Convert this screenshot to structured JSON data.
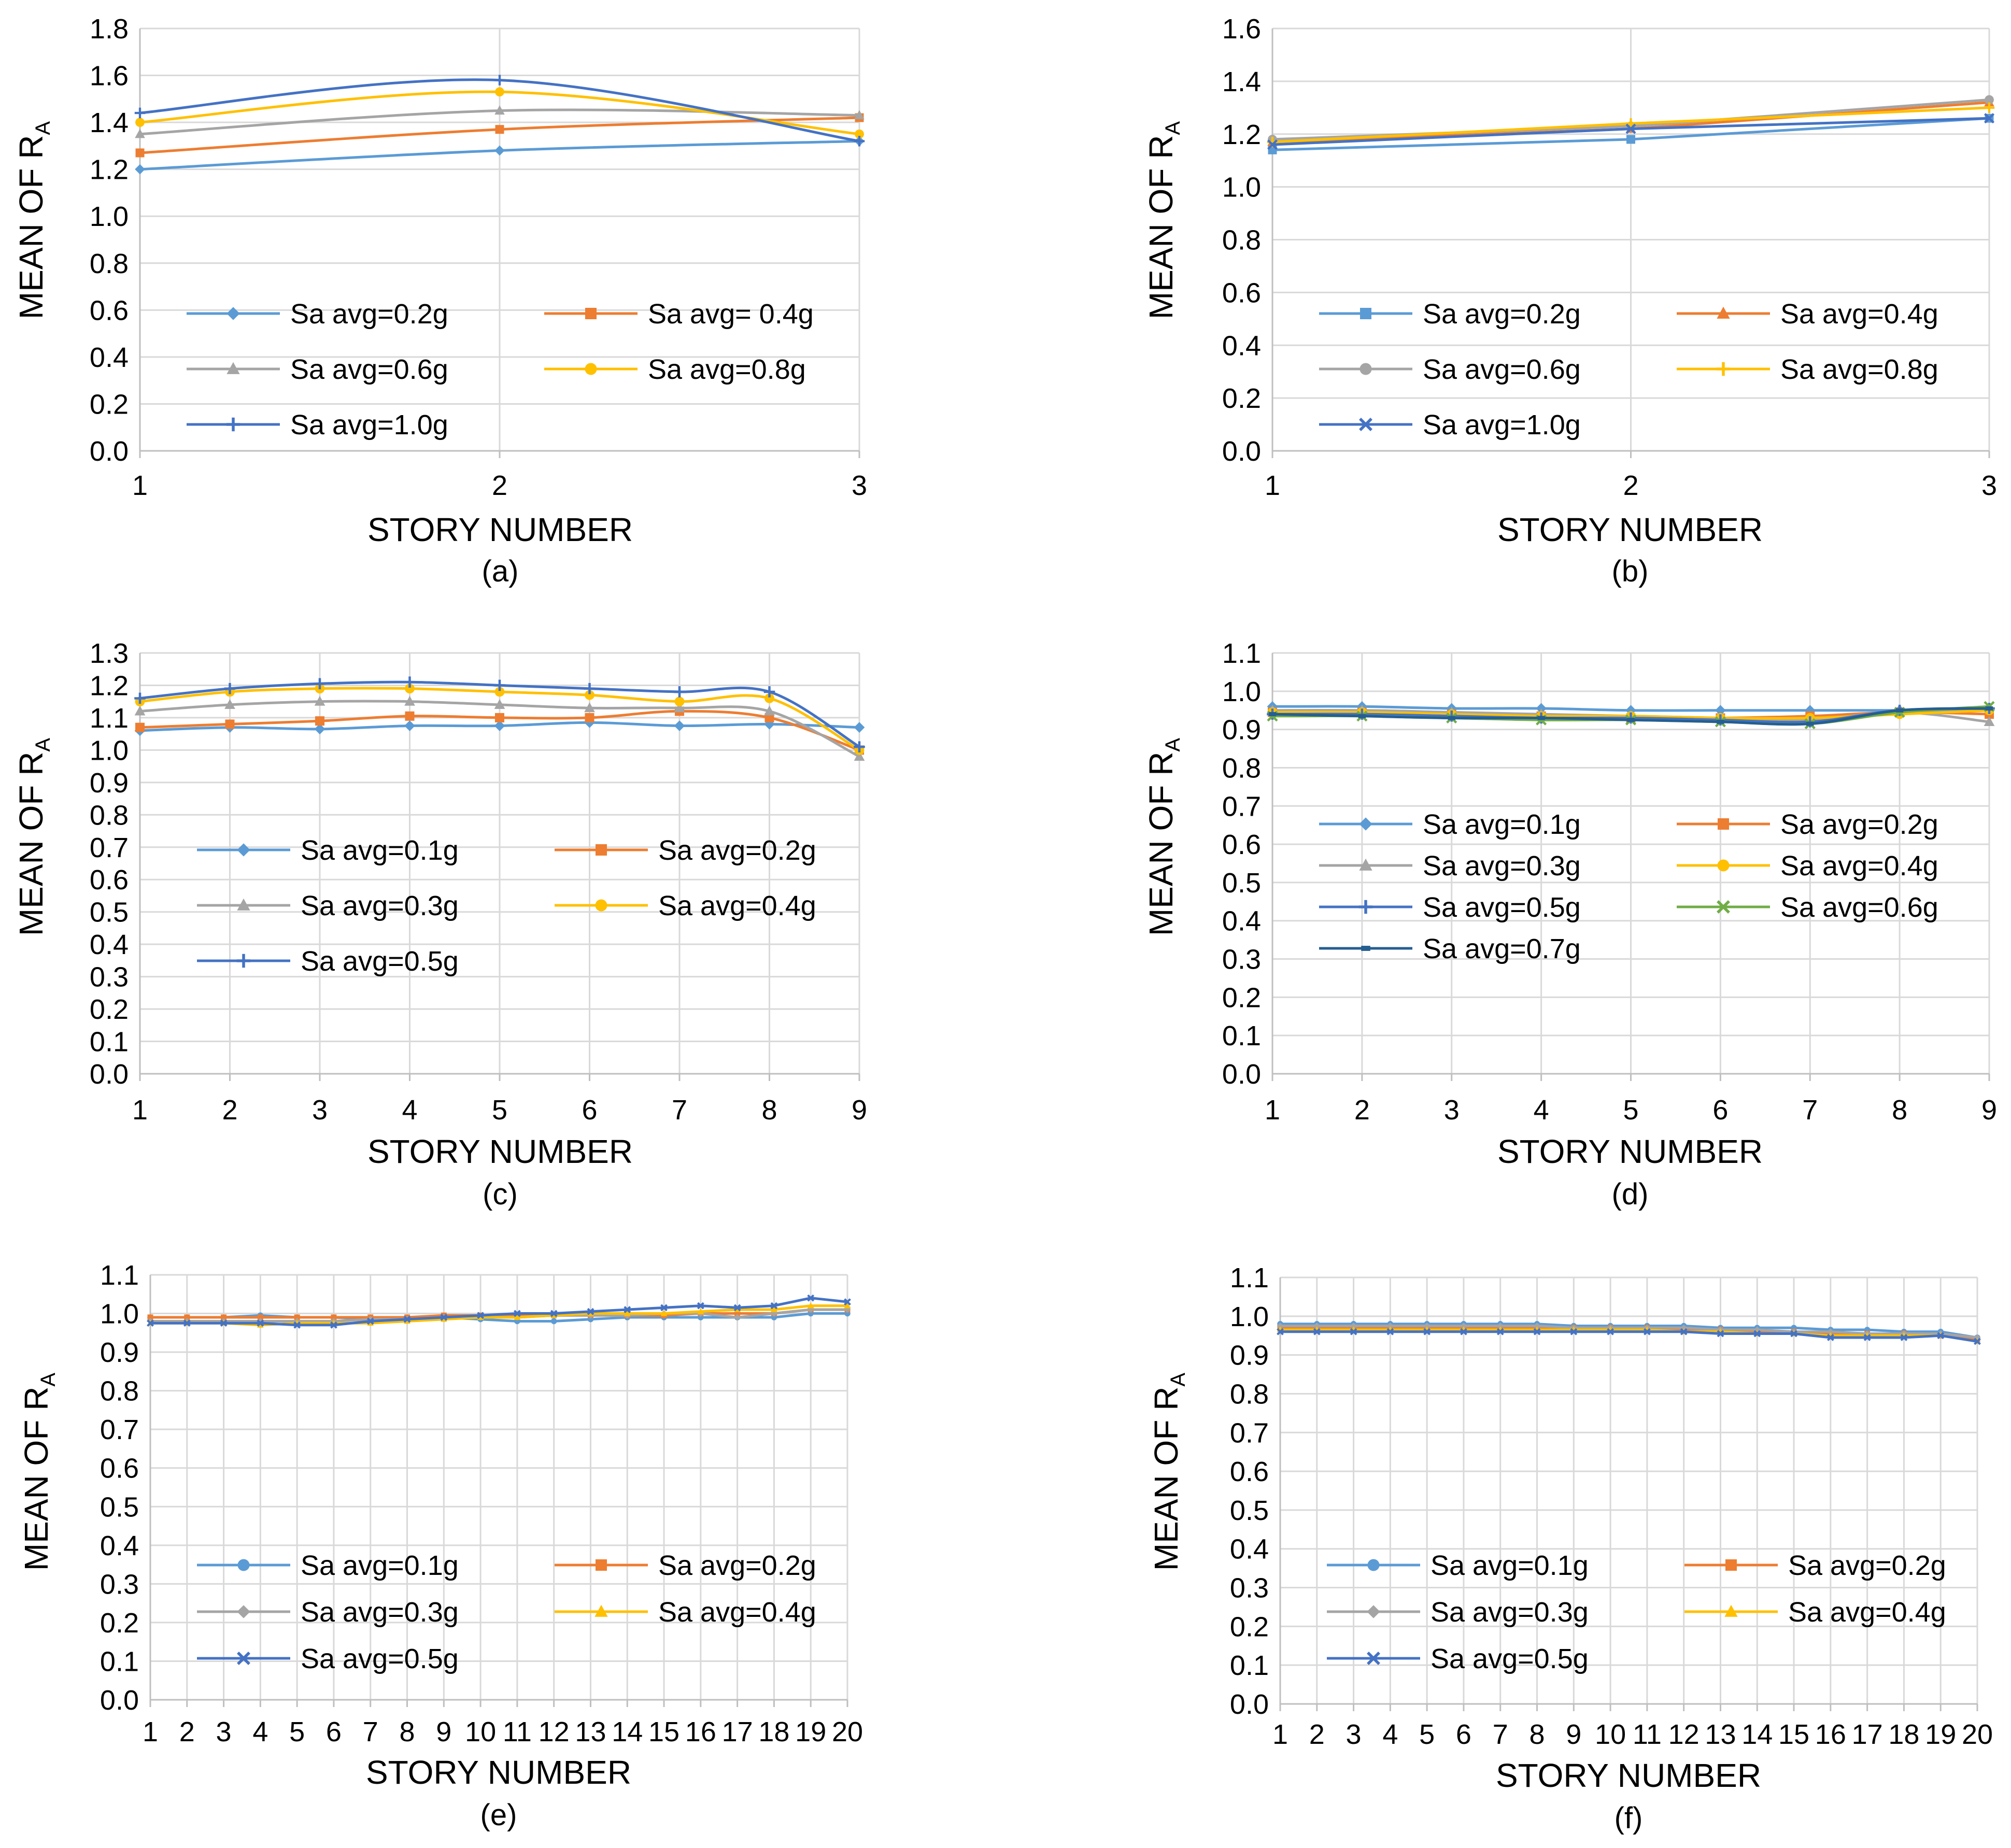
{
  "figure": {
    "panels": [
      {
        "id": "a",
        "caption": "(a)",
        "y_label_main": "MEAN OF  R",
        "y_label_sub": "A",
        "x_label": "STORY NUMBER"
      },
      {
        "id": "b",
        "caption": "(b)",
        "y_label_main": "MEAN OF  R",
        "y_label_sub": "A",
        "x_label": "STORY NUMBER"
      },
      {
        "id": "c",
        "caption": "(c)",
        "y_label_main": "MEAN OF R",
        "y_label_sub": "A",
        "x_label": "STORY NUMBER"
      },
      {
        "id": "d",
        "caption": "(d)",
        "y_label_main": "MEAN OF R",
        "y_label_sub": "A",
        "x_label": "STORY NUMBER"
      },
      {
        "id": "e",
        "caption": "(e)",
        "y_label_main": "MEAN OF  R",
        "y_label_sub": "A",
        "x_label": "STORY NUMBER"
      },
      {
        "id": "f",
        "caption": "(f)",
        "y_label_main": "MEAN OF R",
        "y_label_sub": "A",
        "x_label": "STORY NUMBER"
      }
    ]
  },
  "chart_data": [
    {
      "id": "a",
      "type": "line",
      "title": "",
      "xlabel": "STORY NUMBER",
      "ylabel": "MEAN OF  RA",
      "x": [
        1,
        2,
        3
      ],
      "ylim": [
        0,
        1.8
      ],
      "ytick_step": 0.2,
      "ytick_decimals": 1,
      "grid": true,
      "legend_position": "lower-left",
      "legend_columns": 2,
      "smooth": true,
      "series": [
        {
          "name": "Sa avg=0.2g",
          "color": "#5B9BD5",
          "marker": "diamond",
          "values": [
            1.2,
            1.28,
            1.32
          ]
        },
        {
          "name": "Sa avg= 0.4g",
          "color": "#ED7D31",
          "marker": "square",
          "values": [
            1.27,
            1.37,
            1.42
          ]
        },
        {
          "name": "Sa avg=0.6g",
          "color": "#A5A5A5",
          "marker": "triangle",
          "values": [
            1.35,
            1.45,
            1.43
          ]
        },
        {
          "name": "Sa avg=0.8g",
          "color": "#FFC000",
          "marker": "circle",
          "values": [
            1.4,
            1.53,
            1.35
          ]
        },
        {
          "name": "Sa avg=1.0g",
          "color": "#4472C4",
          "marker": "plus",
          "values": [
            1.44,
            1.58,
            1.32
          ]
        }
      ]
    },
    {
      "id": "b",
      "type": "line",
      "title": "",
      "xlabel": "STORY NUMBER",
      "ylabel": "MEAN OF  RA",
      "x": [
        1,
        2,
        3
      ],
      "ylim": [
        0,
        1.6
      ],
      "ytick_step": 0.2,
      "ytick_decimals": 1,
      "grid": true,
      "legend_position": "lower-left",
      "legend_columns": 2,
      "smooth": false,
      "series": [
        {
          "name": "Sa avg=0.2g",
          "color": "#5B9BD5",
          "marker": "square",
          "values": [
            1.14,
            1.18,
            1.26
          ]
        },
        {
          "name": "Sa avg=0.4g",
          "color": "#ED7D31",
          "marker": "triangle",
          "values": [
            1.17,
            1.22,
            1.32
          ]
        },
        {
          "name": "Sa avg=0.6g",
          "color": "#A5A5A5",
          "marker": "circle",
          "values": [
            1.18,
            1.23,
            1.33
          ]
        },
        {
          "name": "Sa avg=0.8g",
          "color": "#FFC000",
          "marker": "plus",
          "values": [
            1.17,
            1.24,
            1.3
          ]
        },
        {
          "name": "Sa avg=1.0g",
          "color": "#4472C4",
          "marker": "x",
          "values": [
            1.16,
            1.22,
            1.26
          ]
        }
      ]
    },
    {
      "id": "c",
      "type": "line",
      "title": "",
      "xlabel": "STORY NUMBER",
      "ylabel": "MEAN OF RA",
      "x": [
        1,
        2,
        3,
        4,
        5,
        6,
        7,
        8,
        9
      ],
      "ylim": [
        0,
        1.3
      ],
      "ytick_step": 0.1,
      "ytick_decimals": 1,
      "grid": true,
      "legend_position": "lower-left",
      "legend_columns": 2,
      "smooth": true,
      "series": [
        {
          "name": "Sa avg=0.1g",
          "color": "#5B9BD5",
          "marker": "diamond",
          "values": [
            1.06,
            1.07,
            1.065,
            1.075,
            1.075,
            1.085,
            1.075,
            1.08,
            1.07
          ]
        },
        {
          "name": "Sa avg=0.2g",
          "color": "#ED7D31",
          "marker": "square",
          "values": [
            1.07,
            1.08,
            1.09,
            1.105,
            1.1,
            1.1,
            1.12,
            1.1,
            1.0
          ]
        },
        {
          "name": "Sa avg=0.3g",
          "color": "#A5A5A5",
          "marker": "triangle",
          "values": [
            1.12,
            1.14,
            1.15,
            1.15,
            1.14,
            1.13,
            1.13,
            1.12,
            0.98
          ]
        },
        {
          "name": "Sa avg=0.4g",
          "color": "#FFC000",
          "marker": "circle",
          "values": [
            1.15,
            1.18,
            1.19,
            1.19,
            1.18,
            1.17,
            1.15,
            1.16,
            1.0
          ]
        },
        {
          "name": "Sa avg=0.5g",
          "color": "#4472C4",
          "marker": "plus",
          "values": [
            1.16,
            1.19,
            1.205,
            1.21,
            1.2,
            1.19,
            1.18,
            1.18,
            1.01
          ]
        }
      ]
    },
    {
      "id": "d",
      "type": "line",
      "title": "",
      "xlabel": "STORY NUMBER",
      "ylabel": "MEAN OF RA",
      "x": [
        1,
        2,
        3,
        4,
        5,
        6,
        7,
        8,
        9
      ],
      "ylim": [
        0,
        1.1
      ],
      "ytick_step": 0.1,
      "ytick_decimals": 1,
      "grid": true,
      "legend_position": "lower-left",
      "legend_columns": 2,
      "smooth": true,
      "series": [
        {
          "name": "Sa avg=0.1g",
          "color": "#5B9BD5",
          "marker": "diamond",
          "values": [
            0.96,
            0.96,
            0.955,
            0.955,
            0.95,
            0.95,
            0.95,
            0.95,
            0.95
          ]
        },
        {
          "name": "Sa avg=0.2g",
          "color": "#ED7D31",
          "marker": "square",
          "values": [
            0.945,
            0.945,
            0.94,
            0.935,
            0.93,
            0.93,
            0.935,
            0.945,
            0.94
          ]
        },
        {
          "name": "Sa avg=0.3g",
          "color": "#A5A5A5",
          "marker": "triangle",
          "values": [
            0.95,
            0.95,
            0.945,
            0.94,
            0.935,
            0.93,
            0.925,
            0.945,
            0.92
          ]
        },
        {
          "name": "Sa avg=0.4g",
          "color": "#FFC000",
          "marker": "circle",
          "values": [
            0.945,
            0.945,
            0.94,
            0.935,
            0.935,
            0.93,
            0.93,
            0.94,
            0.95
          ]
        },
        {
          "name": "Sa avg=0.5g",
          "color": "#4472C4",
          "marker": "plus",
          "values": [
            0.94,
            0.94,
            0.935,
            0.93,
            0.93,
            0.925,
            0.92,
            0.95,
            0.955
          ]
        },
        {
          "name": "Sa avg=0.6g",
          "color": "#70AD47",
          "marker": "x",
          "values": [
            0.935,
            0.935,
            0.93,
            0.925,
            0.925,
            0.92,
            0.915,
            0.945,
            0.96
          ]
        },
        {
          "name": "Sa avg=0.7g",
          "color": "#255E91",
          "marker": "dash",
          "values": [
            0.94,
            0.935,
            0.93,
            0.93,
            0.925,
            0.92,
            0.915,
            0.95,
            0.955
          ]
        }
      ]
    },
    {
      "id": "e",
      "type": "line",
      "title": "",
      "xlabel": "STORY NUMBER",
      "ylabel": "MEAN OF  RA",
      "x": [
        1,
        2,
        3,
        4,
        5,
        6,
        7,
        8,
        9,
        10,
        11,
        12,
        13,
        14,
        15,
        16,
        17,
        18,
        19,
        20
      ],
      "ylim": [
        0,
        1.1
      ],
      "ytick_step": 0.1,
      "ytick_decimals": 1,
      "grid": true,
      "legend_position": "lower-left",
      "legend_columns": 2,
      "smooth": false,
      "series": [
        {
          "name": "Sa avg=0.1g",
          "color": "#5B9BD5",
          "marker": "circle",
          "values": [
            0.99,
            0.99,
            0.99,
            0.995,
            0.99,
            0.99,
            0.985,
            0.985,
            0.99,
            0.985,
            0.98,
            0.98,
            0.985,
            0.99,
            0.99,
            0.99,
            0.99,
            0.99,
            1.0,
            1.0
          ]
        },
        {
          "name": "Sa avg=0.2g",
          "color": "#ED7D31",
          "marker": "square",
          "values": [
            0.99,
            0.99,
            0.99,
            0.99,
            0.99,
            0.99,
            0.99,
            0.99,
            0.995,
            0.995,
            0.995,
            0.995,
            0.995,
            0.995,
            0.995,
            1.0,
            1.0,
            1.0,
            1.01,
            1.01
          ]
        },
        {
          "name": "Sa avg=0.3g",
          "color": "#A5A5A5",
          "marker": "diamond",
          "values": [
            0.98,
            0.98,
            0.98,
            0.98,
            0.98,
            0.98,
            0.985,
            0.985,
            0.99,
            0.99,
            0.99,
            0.995,
            0.995,
            0.995,
            1.0,
            1.0,
            0.99,
            1.0,
            1.01,
            1.01
          ]
        },
        {
          "name": "Sa avg=0.4g",
          "color": "#FFC000",
          "marker": "triangle",
          "values": [
            0.975,
            0.975,
            0.975,
            0.97,
            0.975,
            0.975,
            0.975,
            0.98,
            0.985,
            0.99,
            0.99,
            0.995,
            1.0,
            1.0,
            1.0,
            1.005,
            1.01,
            1.01,
            1.02,
            1.02
          ]
        },
        {
          "name": "Sa avg=0.5g",
          "color": "#4472C4",
          "marker": "x",
          "values": [
            0.975,
            0.975,
            0.975,
            0.975,
            0.97,
            0.97,
            0.98,
            0.985,
            0.99,
            0.995,
            1.0,
            1.0,
            1.005,
            1.01,
            1.015,
            1.02,
            1.015,
            1.02,
            1.04,
            1.03
          ]
        }
      ]
    },
    {
      "id": "f",
      "type": "line",
      "title": "",
      "xlabel": "STORY NUMBER",
      "ylabel": "MEAN OF RA",
      "x": [
        1,
        2,
        3,
        4,
        5,
        6,
        7,
        8,
        9,
        10,
        11,
        12,
        13,
        14,
        15,
        16,
        17,
        18,
        19,
        20
      ],
      "ylim": [
        0,
        1.1
      ],
      "ytick_step": 0.1,
      "ytick_decimals": 1,
      "grid": true,
      "legend_position": "lower-left",
      "legend_columns": 2,
      "smooth": false,
      "series": [
        {
          "name": "Sa avg=0.1g",
          "color": "#5B9BD5",
          "marker": "circle",
          "values": [
            0.98,
            0.98,
            0.98,
            0.98,
            0.98,
            0.98,
            0.98,
            0.98,
            0.975,
            0.975,
            0.975,
            0.975,
            0.97,
            0.97,
            0.97,
            0.965,
            0.965,
            0.96,
            0.96,
            0.945
          ]
        },
        {
          "name": "Sa avg=0.2g",
          "color": "#ED7D31",
          "marker": "square",
          "values": [
            0.97,
            0.97,
            0.97,
            0.97,
            0.97,
            0.97,
            0.97,
            0.97,
            0.97,
            0.97,
            0.97,
            0.965,
            0.965,
            0.96,
            0.96,
            0.955,
            0.955,
            0.955,
            0.95,
            0.94
          ]
        },
        {
          "name": "Sa avg=0.3g",
          "color": "#A5A5A5",
          "marker": "diamond",
          "values": [
            0.975,
            0.975,
            0.975,
            0.975,
            0.975,
            0.975,
            0.975,
            0.975,
            0.97,
            0.97,
            0.97,
            0.97,
            0.965,
            0.965,
            0.96,
            0.96,
            0.955,
            0.955,
            0.955,
            0.945
          ]
        },
        {
          "name": "Sa avg=0.4g",
          "color": "#FFC000",
          "marker": "triangle",
          "values": [
            0.965,
            0.965,
            0.965,
            0.965,
            0.965,
            0.965,
            0.965,
            0.965,
            0.965,
            0.965,
            0.965,
            0.96,
            0.96,
            0.955,
            0.955,
            0.95,
            0.95,
            0.95,
            0.95,
            0.935
          ]
        },
        {
          "name": "Sa avg=0.5g",
          "color": "#4472C4",
          "marker": "x",
          "values": [
            0.96,
            0.96,
            0.96,
            0.96,
            0.96,
            0.96,
            0.96,
            0.96,
            0.96,
            0.96,
            0.96,
            0.96,
            0.955,
            0.955,
            0.955,
            0.945,
            0.945,
            0.945,
            0.95,
            0.935
          ]
        }
      ]
    }
  ]
}
